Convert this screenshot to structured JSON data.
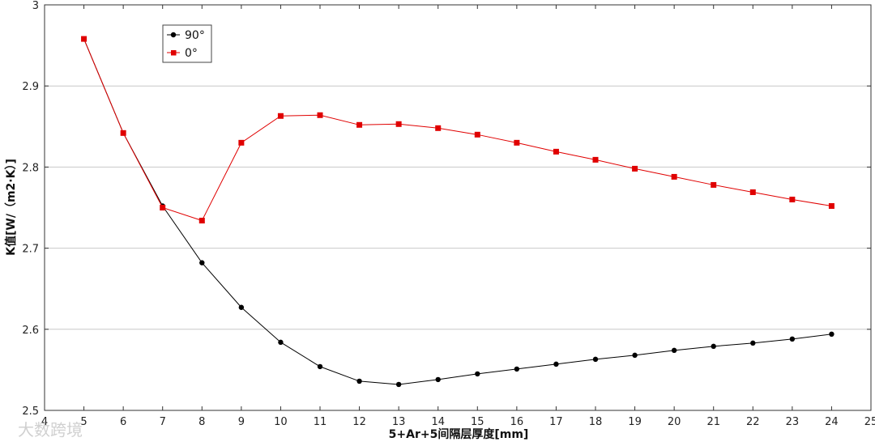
{
  "chart_data": {
    "type": "line",
    "title": "",
    "xlabel": "5+Ar+5间隔层厚度[mm]",
    "ylabel": "K值[W/（m2·K）]",
    "xlim": [
      4,
      25
    ],
    "ylim": [
      2.5,
      3.0
    ],
    "xticks": [
      4,
      5,
      6,
      7,
      8,
      9,
      10,
      11,
      12,
      13,
      14,
      15,
      16,
      17,
      18,
      19,
      20,
      21,
      22,
      23,
      24,
      25
    ],
    "yticks": [
      2.5,
      2.6,
      2.7,
      2.8,
      2.9,
      3.0
    ],
    "ytick_labels": [
      "2.5",
      "2.6",
      "2.7",
      "2.8",
      "2.9",
      "3"
    ],
    "grid": "horizontal",
    "legend_position": "top-left",
    "x": [
      5,
      6,
      7,
      8,
      9,
      10,
      11,
      12,
      13,
      14,
      15,
      16,
      17,
      18,
      19,
      20,
      21,
      22,
      23,
      24
    ],
    "series": [
      {
        "name": "90°",
        "color": "#000000",
        "marker": "circle",
        "values": [
          2.958,
          2.842,
          2.752,
          2.682,
          2.627,
          2.584,
          2.554,
          2.536,
          2.532,
          2.538,
          2.545,
          2.551,
          2.557,
          2.563,
          2.568,
          2.574,
          2.579,
          2.583,
          2.588,
          2.594
        ]
      },
      {
        "name": "0°",
        "color": "#e00000",
        "marker": "square",
        "values": [
          2.958,
          2.842,
          2.75,
          2.734,
          2.83,
          2.863,
          2.864,
          2.852,
          2.853,
          2.848,
          2.84,
          2.83,
          2.819,
          2.809,
          2.798,
          2.788,
          2.778,
          2.769,
          2.76,
          2.752
        ]
      }
    ]
  },
  "watermark": "大数跨境"
}
